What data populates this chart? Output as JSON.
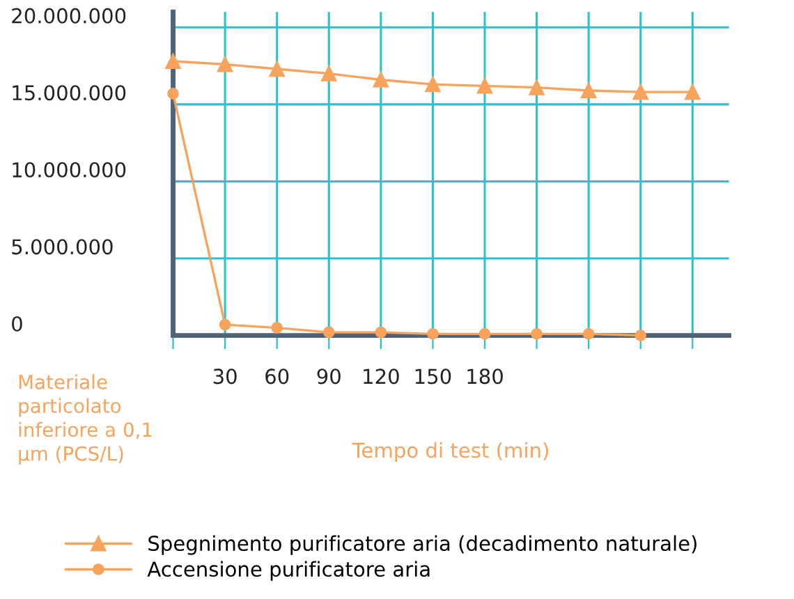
{
  "chart_data": {
    "type": "line",
    "xlabel": "Tempo di test (min)",
    "ylabel": "Materiale particolato inferiore a 0,1 µm (PCS/L)",
    "categories": [
      null,
      "30",
      "60",
      "90",
      "120",
      "150",
      "180",
      null,
      null,
      null,
      null
    ],
    "series": [
      {
        "name": "Spegnimento purificatore aria (decadimento naturale)",
        "color": "#f7a35c",
        "marker": "triangle",
        "values": [
          17800000,
          17600000,
          17300000,
          17000000,
          16600000,
          16300000,
          16200000,
          16100000,
          15900000,
          15800000,
          15800000
        ]
      },
      {
        "name": "Accensione purificatore aria",
        "color": "#f7a35c",
        "marker": "circle",
        "values": [
          15700000,
          700000,
          500000,
          200000,
          200000,
          100000,
          100000,
          100000,
          100000,
          0,
          null
        ]
      }
    ],
    "ylim": [
      0,
      21000000
    ],
    "yticks": [
      {
        "value": 0,
        "label": "0"
      },
      {
        "value": 5000000,
        "label": "5.000.000"
      },
      {
        "value": 10000000,
        "label": "10.000.000"
      },
      {
        "value": 15000000,
        "label": "15.000.000"
      },
      {
        "value": 20000000,
        "label": "20.000.000"
      }
    ],
    "grid": true,
    "legend": "bottom",
    "line_style": "solid"
  }
}
